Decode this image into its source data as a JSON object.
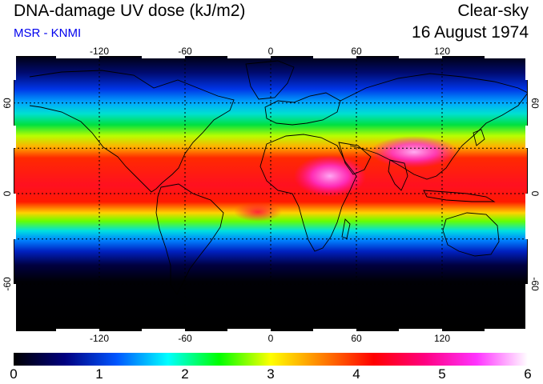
{
  "header": {
    "title": "DNA-damage UV dose (kJ/m2)",
    "subtitle": "MSR - KNMI",
    "condition": "Clear-sky",
    "date": "16 August 1974"
  },
  "map": {
    "longitude_ticks": [
      "-120",
      "-60",
      "0",
      "60",
      "120"
    ],
    "latitude_ticks": [
      "60",
      "0",
      "-60"
    ],
    "longitude_values": [
      -120,
      -60,
      0,
      60,
      120
    ],
    "latitude_values": [
      60,
      0,
      -60
    ],
    "lon_range": [
      -180,
      180
    ],
    "lat_range": [
      -90,
      90
    ],
    "gridlines": {
      "lon": [
        -120,
        -60,
        0,
        60,
        120
      ],
      "lat": [
        -60,
        -30,
        0,
        30,
        60
      ]
    }
  },
  "colorbar": {
    "range": [
      0,
      6
    ],
    "labels": [
      "0",
      "1",
      "2",
      "3",
      "4",
      "5",
      "6"
    ],
    "colors": [
      "#000000",
      "#000080",
      "#0055ff",
      "#00ffff",
      "#00ff00",
      "#ffff00",
      "#ff8000",
      "#ff0000",
      "#ff0080",
      "#ff33ff",
      "#ffffff"
    ]
  }
}
